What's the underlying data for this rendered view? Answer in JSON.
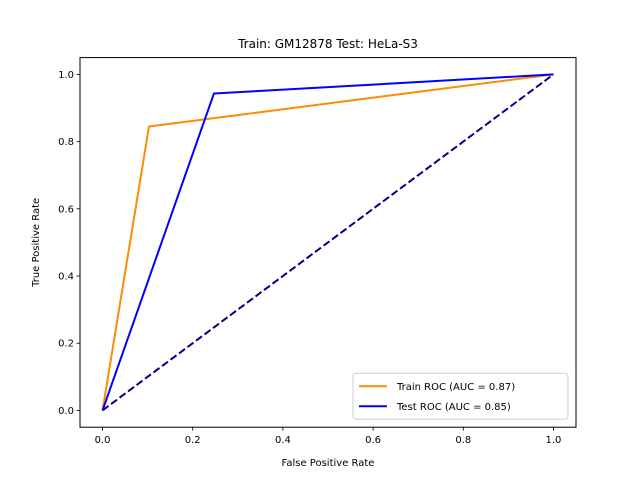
{
  "chart_data": {
    "type": "line",
    "title": "Train: GM12878   Test: HeLa-S3",
    "xlabel": "False Positive Rate",
    "ylabel": "True Positive Rate",
    "xlim": [
      -0.05,
      1.05
    ],
    "ylim": [
      -0.05,
      1.05
    ],
    "xticks": [
      0.0,
      0.2,
      0.4,
      0.6,
      0.8,
      1.0
    ],
    "yticks": [
      0.0,
      0.2,
      0.4,
      0.6,
      0.8,
      1.0
    ],
    "xtick_labels": [
      "0.0",
      "0.2",
      "0.4",
      "0.6",
      "0.8",
      "1.0"
    ],
    "ytick_labels": [
      "0.0",
      "0.2",
      "0.4",
      "0.6",
      "0.8",
      "1.0"
    ],
    "grid": false,
    "legend_position": "lower-right",
    "series": [
      {
        "name": "Train ROC (AUC = 0.87)",
        "color": "#ff8c00",
        "style": "solid",
        "x": [
          0.0,
          0.103,
          1.0
        ],
        "y": [
          0.0,
          0.845,
          1.0
        ]
      },
      {
        "name": "Test ROC (AUC = 0.85)",
        "color": "#0000ff",
        "style": "solid",
        "x": [
          0.0,
          0.247,
          1.0
        ],
        "y": [
          0.0,
          0.943,
          1.0
        ]
      }
    ],
    "reference_line": {
      "color": "#000080",
      "style": "dashed",
      "x": [
        0.0,
        1.0
      ],
      "y": [
        0.0,
        1.0
      ]
    }
  }
}
